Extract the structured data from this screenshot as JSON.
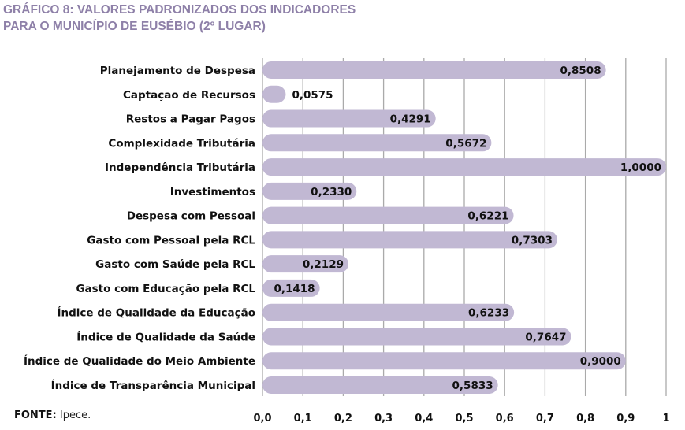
{
  "chart_data": {
    "type": "bar",
    "orientation": "horizontal",
    "title": "GRÁFICO 8: VALORES PADRONIZADOS DOS INDICADORES PARA O MUNICÍPIO DE EUSÉBIO (2º LUGAR)",
    "title_lines": [
      "GRÁFICO 8: VALORES PADRONIZADOS DOS INDICADORES",
      "PARA O MUNICÍPIO DE EUSÉBIO (2º LUGAR)"
    ],
    "categories": [
      "Planejamento de Despesa",
      "Captação de Recursos",
      "Restos a Pagar Pagos",
      "Complexidade Tributária",
      "Independência Tributária",
      "Investimentos",
      "Despesa com Pessoal",
      "Gasto com Pessoal pela RCL",
      "Gasto com Saúde pela RCL",
      "Gasto com Educação pela RCL",
      "Índice de Qualidade da Educação",
      "Índice de Qualidade da Saúde",
      "Índice de Qualidade do Meio Ambiente",
      "Índice de Transparência Municipal"
    ],
    "values": [
      0.8508,
      0.0575,
      0.4291,
      0.5672,
      1.0,
      0.233,
      0.6221,
      0.7303,
      0.2129,
      0.1418,
      0.6233,
      0.7647,
      0.9,
      0.5833
    ],
    "value_labels": [
      "0,8508",
      "0,0575",
      "0,4291",
      "0,5672",
      "1,0000",
      "0,2330",
      "0,6221",
      "0,7303",
      "0,2129",
      "0,1418",
      "0,6233",
      "0,7647",
      "0,9000",
      "0,5833"
    ],
    "xlim": [
      0,
      1
    ],
    "xticks": [
      "0,0",
      "0,1",
      "0,2",
      "0,3",
      "0,4",
      "0,5",
      "0,6",
      "0,7",
      "0,8",
      "0,9",
      "1"
    ],
    "grid": true,
    "bar_color": "#c1b8d3",
    "title_color": "#8e80a8"
  },
  "source": {
    "label": "FONTE:",
    "text": "Ipece."
  }
}
